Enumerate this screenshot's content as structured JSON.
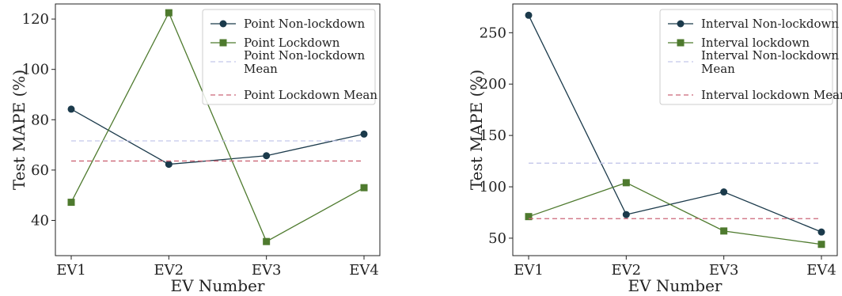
{
  "chart_data": [
    {
      "type": "line",
      "title": "",
      "xlabel": "EV Number",
      "ylabel": "Test MAPE (%)",
      "categories": [
        "EV1",
        "EV2",
        "EV3",
        "EV4"
      ],
      "ylim": [
        26,
        126
      ],
      "yticks": [
        40,
        60,
        80,
        100,
        120
      ],
      "grid": false,
      "legend_position": "top-right",
      "series": [
        {
          "name": "Point Non-lockdown",
          "values": [
            84.2,
            62.3,
            65.7,
            74.3
          ],
          "color": "#1b3a4b",
          "marker": "circle",
          "style": "solid"
        },
        {
          "name": "Point Lockdown",
          "values": [
            47.2,
            122.5,
            31.6,
            53.0
          ],
          "color": "#4e7a2e",
          "marker": "square",
          "style": "solid"
        },
        {
          "name": "Point Non-lockdown Mean",
          "name_lines": [
            "Point Non-lockdown",
            "Mean"
          ],
          "values": [
            71.6,
            71.6,
            71.6,
            71.6
          ],
          "color": "#c3c6ea",
          "marker": "none",
          "style": "dashed"
        },
        {
          "name": "Point Lockdown Mean",
          "values": [
            63.6,
            63.6,
            63.6,
            63.6
          ],
          "color": "#cc6677",
          "marker": "none",
          "style": "dashed"
        }
      ]
    },
    {
      "type": "line",
      "title": "",
      "xlabel": "EV Number",
      "ylabel": "Test MAPE (%)",
      "categories": [
        "EV1",
        "EV2",
        "EV3",
        "EV4"
      ],
      "ylim": [
        33,
        278
      ],
      "yticks": [
        50,
        100,
        150,
        200,
        250
      ],
      "grid": false,
      "legend_position": "top-right",
      "series": [
        {
          "name": "Interval Non-lockdown",
          "values": [
            267,
            73,
            95,
            56
          ],
          "color": "#1b3a4b",
          "marker": "circle",
          "style": "solid"
        },
        {
          "name": "Interval lockdown",
          "values": [
            71,
            104,
            57,
            44
          ],
          "color": "#4e7a2e",
          "marker": "square",
          "style": "solid"
        },
        {
          "name": "Interval Non-lockdown Mean",
          "name_lines": [
            "Interval Non-lockdown",
            "Mean"
          ],
          "values": [
            123,
            123,
            123,
            123
          ],
          "color": "#c3c6ea",
          "marker": "none",
          "style": "dashed"
        },
        {
          "name": "Interval lockdown Mean",
          "values": [
            69,
            69,
            69,
            69
          ],
          "color": "#cc6677",
          "marker": "none",
          "style": "dashed"
        }
      ]
    }
  ]
}
